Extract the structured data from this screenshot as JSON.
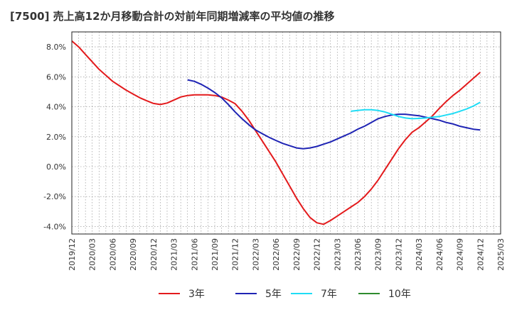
{
  "title": "[7500]  売上高12か月移動合計の対前年同期増減率の平均値の推移",
  "chart_data": {
    "type": "line",
    "title": "[7500]  売上高12か月移動合計の対前年同期増減率の平均値の推移",
    "xlabel": "",
    "ylabel": "",
    "x_ticks": [
      "2019/12",
      "2020/03",
      "2020/06",
      "2020/09",
      "2020/12",
      "2021/03",
      "2021/06",
      "2021/09",
      "2021/12",
      "2022/03",
      "2022/06",
      "2022/09",
      "2022/12",
      "2023/03",
      "2023/06",
      "2023/09",
      "2023/12",
      "2024/03",
      "2024/06",
      "2024/09",
      "2024/12",
      "2025/03"
    ],
    "y_ticks": [
      -4.0,
      -2.0,
      0.0,
      2.0,
      4.0,
      6.0,
      8.0
    ],
    "y_tick_labels": [
      "-4.0%",
      "-2.0%",
      "0.0%",
      "2.0%",
      "4.0%",
      "6.0%",
      "8.0%"
    ],
    "ylim": [
      -4.5,
      9.0
    ],
    "xlim": [
      "2019/12",
      "2025/03"
    ],
    "grid": true,
    "legend_position": "bottom",
    "series": [
      {
        "name": "3年",
        "color": "#e31a1c",
        "x": [
          "2019/12",
          "2020/01",
          "2020/02",
          "2020/03",
          "2020/04",
          "2020/05",
          "2020/06",
          "2020/07",
          "2020/08",
          "2020/09",
          "2020/10",
          "2020/11",
          "2020/12",
          "2021/01",
          "2021/02",
          "2021/03",
          "2021/04",
          "2021/05",
          "2021/06",
          "2021/07",
          "2021/08",
          "2021/09",
          "2021/10",
          "2021/11",
          "2021/12",
          "2022/01",
          "2022/02",
          "2022/03",
          "2022/04",
          "2022/05",
          "2022/06",
          "2022/07",
          "2022/08",
          "2022/09",
          "2022/10",
          "2022/11",
          "2022/12",
          "2023/01",
          "2023/02",
          "2023/03",
          "2023/04",
          "2023/05",
          "2023/06",
          "2023/07",
          "2023/08",
          "2023/09",
          "2023/10",
          "2023/11",
          "2023/12",
          "2024/01",
          "2024/02",
          "2024/03",
          "2024/04",
          "2024/05",
          "2024/06",
          "2024/07",
          "2024/08",
          "2024/09",
          "2024/10",
          "2024/11",
          "2024/12"
        ],
        "values": [
          8.4,
          8.0,
          7.5,
          7.0,
          6.5,
          6.1,
          5.7,
          5.4,
          5.1,
          4.85,
          4.6,
          4.4,
          4.22,
          4.15,
          4.25,
          4.45,
          4.65,
          4.75,
          4.8,
          4.8,
          4.8,
          4.75,
          4.65,
          4.45,
          4.2,
          3.7,
          3.1,
          2.4,
          1.7,
          1.0,
          0.3,
          -0.5,
          -1.3,
          -2.1,
          -2.8,
          -3.4,
          -3.75,
          -3.85,
          -3.6,
          -3.3,
          -3.0,
          -2.7,
          -2.4,
          -2.0,
          -1.5,
          -0.9,
          -0.2,
          0.5,
          1.2,
          1.8,
          2.3,
          2.6,
          3.0,
          3.4,
          3.9,
          4.35,
          4.75,
          5.1,
          5.5,
          5.9,
          6.3
        ]
      },
      {
        "name": "5年",
        "color": "#1f24b4",
        "x": [
          "2021/05",
          "2021/06",
          "2021/07",
          "2021/08",
          "2021/09",
          "2021/10",
          "2021/11",
          "2021/12",
          "2022/01",
          "2022/02",
          "2022/03",
          "2022/04",
          "2022/05",
          "2022/06",
          "2022/07",
          "2022/08",
          "2022/09",
          "2022/10",
          "2022/11",
          "2022/12",
          "2023/01",
          "2023/02",
          "2023/03",
          "2023/04",
          "2023/05",
          "2023/06",
          "2023/07",
          "2023/08",
          "2023/09",
          "2023/10",
          "2023/11",
          "2023/12",
          "2024/01",
          "2024/02",
          "2024/03",
          "2024/04",
          "2024/05",
          "2024/06",
          "2024/07",
          "2024/08",
          "2024/09",
          "2024/10",
          "2024/11",
          "2024/12"
        ],
        "values": [
          5.8,
          5.7,
          5.5,
          5.25,
          4.95,
          4.6,
          4.15,
          3.65,
          3.2,
          2.8,
          2.45,
          2.2,
          1.95,
          1.75,
          1.55,
          1.4,
          1.25,
          1.2,
          1.25,
          1.35,
          1.5,
          1.65,
          1.85,
          2.05,
          2.25,
          2.5,
          2.7,
          2.95,
          3.2,
          3.35,
          3.45,
          3.5,
          3.5,
          3.45,
          3.4,
          3.3,
          3.2,
          3.1,
          2.95,
          2.85,
          2.7,
          2.6,
          2.5,
          2.45
        ]
      },
      {
        "name": "7年",
        "color": "#1fdcf5",
        "x": [
          "2023/05",
          "2023/06",
          "2023/07",
          "2023/08",
          "2023/09",
          "2023/10",
          "2023/11",
          "2023/12",
          "2024/01",
          "2024/02",
          "2024/03",
          "2024/04",
          "2024/05",
          "2024/06",
          "2024/07",
          "2024/08",
          "2024/09",
          "2024/10",
          "2024/11",
          "2024/12"
        ],
        "values": [
          3.7,
          3.75,
          3.8,
          3.8,
          3.75,
          3.65,
          3.5,
          3.35,
          3.25,
          3.2,
          3.22,
          3.25,
          3.3,
          3.35,
          3.45,
          3.55,
          3.7,
          3.85,
          4.05,
          4.3
        ]
      },
      {
        "name": "10年",
        "color": "#2e8b2e",
        "x": [],
        "values": []
      }
    ]
  }
}
